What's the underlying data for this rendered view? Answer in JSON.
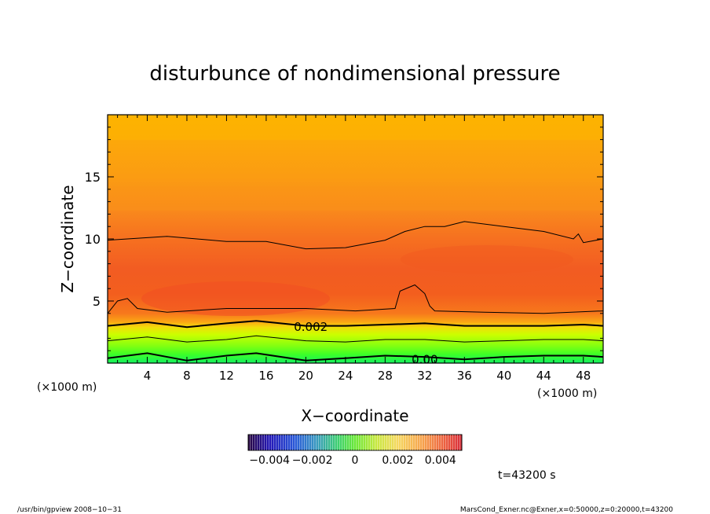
{
  "chart_data": {
    "type": "heatmap",
    "title": "disturbunce of nondimensional pressure",
    "xlabel": "X−coordinate",
    "ylabel": "Z−coordinate",
    "x_unit_left": "(×1000 m)",
    "x_unit_right": "(×1000 m)",
    "xlim": [
      0,
      50
    ],
    "ylim": [
      0,
      20
    ],
    "x_ticks": [
      4,
      8,
      12,
      16,
      20,
      24,
      28,
      32,
      36,
      40,
      44,
      48
    ],
    "y_ticks": [
      5,
      10,
      15
    ],
    "x_tick_labels": [
      "4",
      "8",
      "12",
      "16",
      "20",
      "24",
      "28",
      "32",
      "36",
      "40",
      "44",
      "48"
    ],
    "y_tick_labels": [
      "5",
      "10",
      "15"
    ],
    "contour_labels": [
      {
        "text": "0.002",
        "x": 20.5,
        "y": 2.9
      },
      {
        "text": "0.00",
        "x": 32.0,
        "y": 0.3
      }
    ],
    "contours": [
      {
        "level": 0.002,
        "weight": "bold",
        "points": [
          [
            0,
            3.0
          ],
          [
            4,
            3.3
          ],
          [
            8,
            2.9
          ],
          [
            12,
            3.2
          ],
          [
            15,
            3.4
          ],
          [
            20,
            3.0
          ],
          [
            24,
            3.0
          ],
          [
            28,
            3.1
          ],
          [
            32,
            3.2
          ],
          [
            36,
            3.0
          ],
          [
            40,
            3.0
          ],
          [
            44,
            3.0
          ],
          [
            48,
            3.1
          ],
          [
            50,
            3.0
          ]
        ]
      },
      {
        "level": 0.001,
        "weight": "thin",
        "points": [
          [
            0,
            1.8
          ],
          [
            4,
            2.1
          ],
          [
            8,
            1.7
          ],
          [
            12,
            1.9
          ],
          [
            15,
            2.2
          ],
          [
            20,
            1.8
          ],
          [
            24,
            1.7
          ],
          [
            28,
            1.9
          ],
          [
            32,
            1.9
          ],
          [
            36,
            1.7
          ],
          [
            40,
            1.8
          ],
          [
            44,
            1.9
          ],
          [
            48,
            1.9
          ],
          [
            50,
            1.8
          ]
        ]
      },
      {
        "level": 0.0,
        "weight": "bold",
        "points": [
          [
            0,
            0.4
          ],
          [
            4,
            0.8
          ],
          [
            8,
            0.2
          ],
          [
            12,
            0.6
          ],
          [
            15,
            0.8
          ],
          [
            20,
            0.2
          ],
          [
            24,
            0.4
          ],
          [
            28,
            0.6
          ],
          [
            32,
            0.5
          ],
          [
            36,
            0.3
          ],
          [
            40,
            0.5
          ],
          [
            44,
            0.6
          ],
          [
            48,
            0.6
          ],
          [
            50,
            0.5
          ]
        ]
      },
      {
        "level": 0.003,
        "weight": "thin",
        "points": [
          [
            0,
            4.0
          ],
          [
            1,
            5.0
          ],
          [
            2,
            5.2
          ],
          [
            3,
            4.4
          ],
          [
            6,
            4.1
          ],
          [
            12,
            4.4
          ],
          [
            16,
            4.4
          ],
          [
            20,
            4.4
          ],
          [
            25,
            4.2
          ],
          [
            29,
            4.4
          ],
          [
            29.5,
            5.8
          ],
          [
            31,
            6.3
          ],
          [
            32,
            5.6
          ],
          [
            32.5,
            4.6
          ],
          [
            33,
            4.2
          ],
          [
            38,
            4.1
          ],
          [
            44,
            4.0
          ],
          [
            50,
            4.2
          ]
        ]
      },
      {
        "level": 0.004,
        "weight": "thin",
        "points": [
          [
            0,
            9.9
          ],
          [
            6,
            10.2
          ],
          [
            12,
            9.8
          ],
          [
            16,
            9.8
          ],
          [
            20,
            9.2
          ],
          [
            24,
            9.3
          ],
          [
            28,
            9.9
          ],
          [
            30,
            10.6
          ],
          [
            32,
            11.0
          ],
          [
            34,
            11.0
          ],
          [
            36,
            11.4
          ],
          [
            40,
            11.0
          ],
          [
            44,
            10.6
          ],
          [
            47,
            10.0
          ],
          [
            47.5,
            10.4
          ],
          [
            48,
            9.7
          ],
          [
            50,
            10.0
          ]
        ]
      }
    ],
    "colorbar": {
      "tick_labels": [
        "−0.004",
        "−0.002",
        "0",
        "0.002",
        "0.004"
      ],
      "tick_values": [
        -0.004,
        -0.002,
        0,
        0.002,
        0.004
      ],
      "range": [
        -0.005,
        0.005
      ]
    },
    "time_label": "t=43200 s",
    "footer_left": "/usr/bin/gpview   2008−10−31",
    "footer_right": "MarsCond_Exner.nc@Exner,x=0:50000,z=0:20000,t=43200",
    "colors": {
      "high": "#fdb100",
      "mid": "#fc8a1c",
      "peak": "#f25020",
      "low_yellow": "#ccff00",
      "low_green": "#34ff20"
    }
  }
}
